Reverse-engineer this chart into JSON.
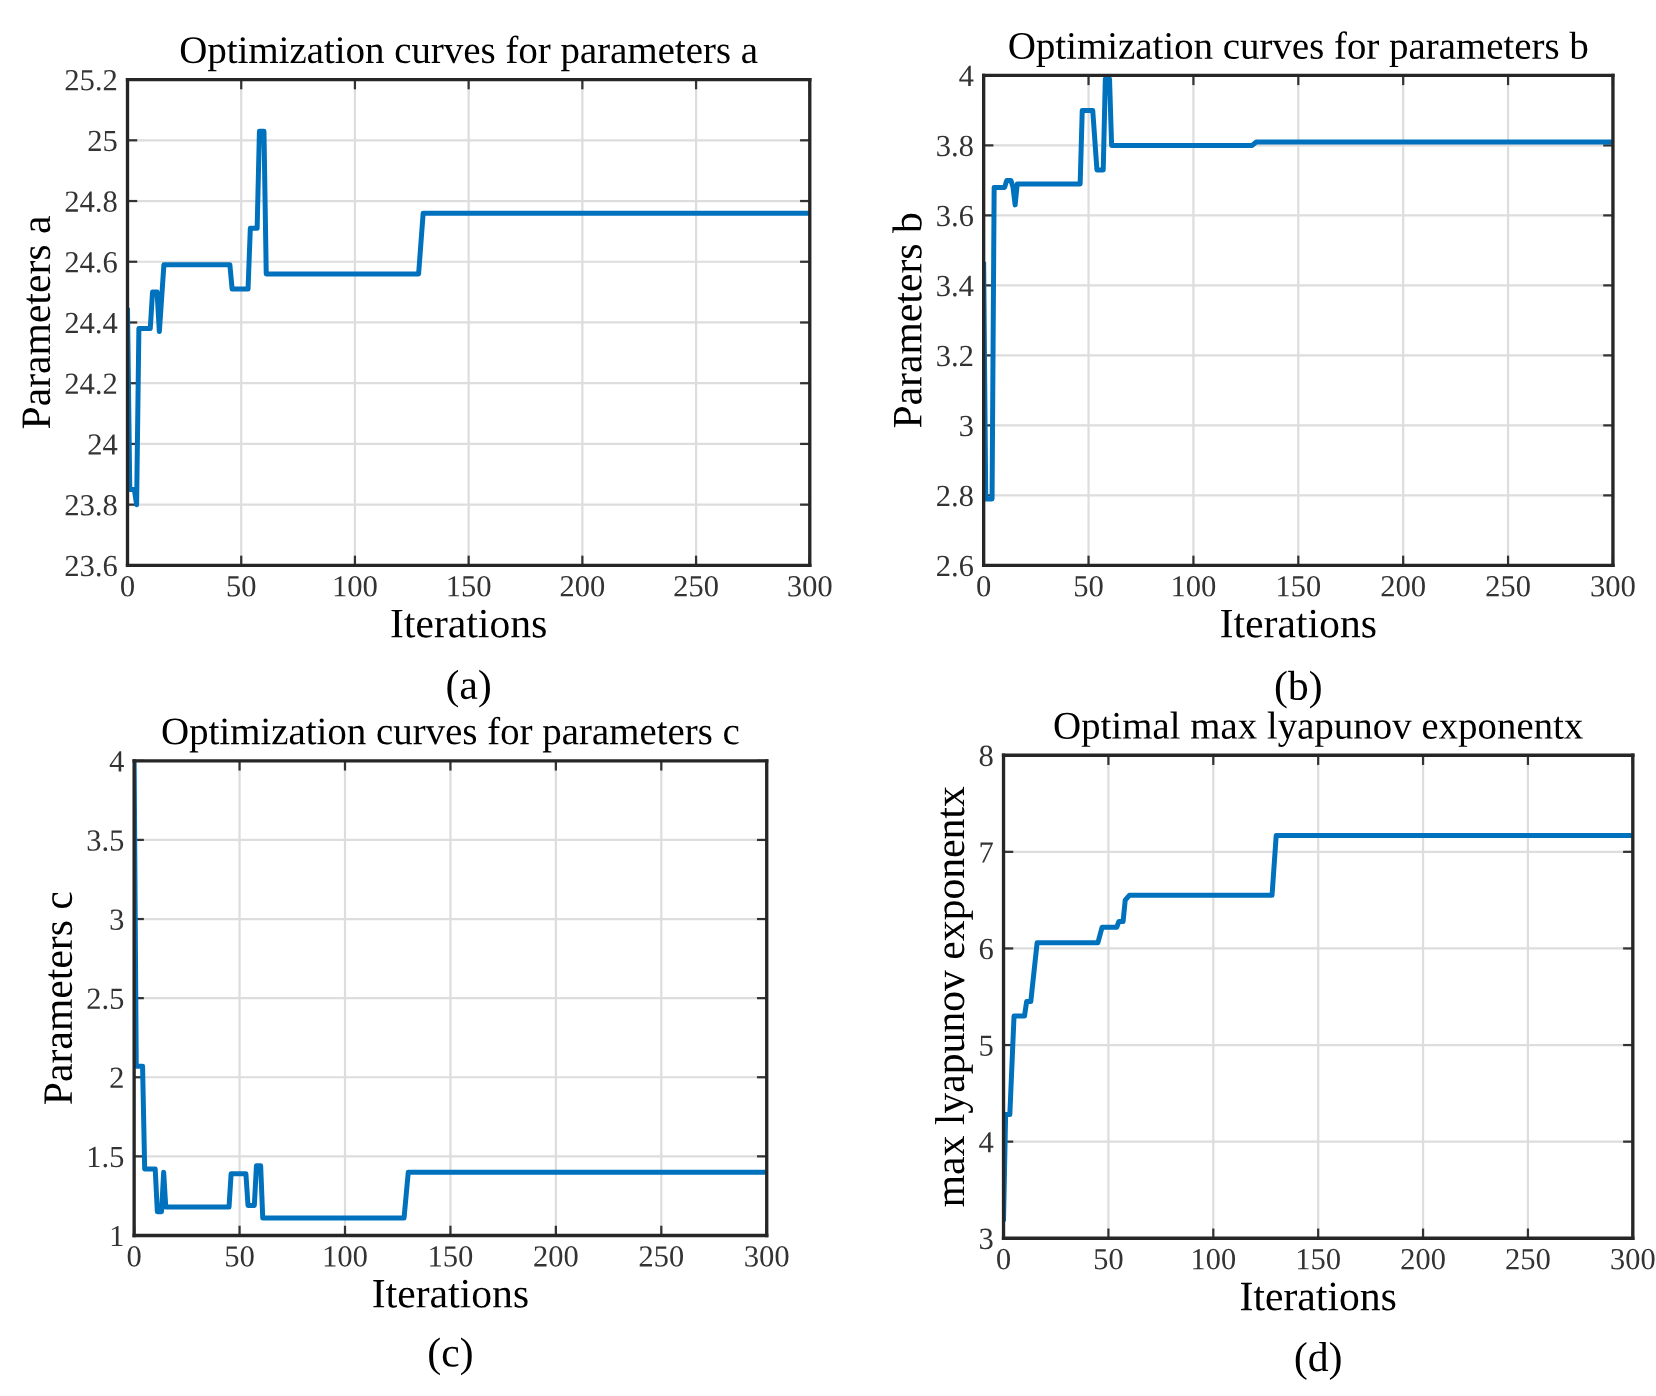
{
  "chart_data": [
    {
      "type": "line",
      "title": "Optimization curves for parameters a",
      "xlabel": "Iterations",
      "ylabel": "Parameters a",
      "annotations": [
        "(a)"
      ],
      "xlim": [
        0,
        300
      ],
      "xticks": [
        0,
        50,
        100,
        150,
        200,
        250,
        300
      ],
      "ylim": [
        23.6,
        25.2
      ],
      "yticks": [
        23.6,
        23.8,
        24,
        24.2,
        24.4,
        24.6,
        24.8,
        25,
        25.2
      ],
      "grid": true,
      "series": [
        {
          "color": "#0072bd",
          "x": [
            0,
            1,
            3,
            4,
            5,
            10,
            11,
            13,
            14,
            16,
            45,
            46,
            53,
            54,
            57,
            58,
            60,
            61,
            128,
            130,
            300
          ],
          "values": [
            24.44,
            23.85,
            23.85,
            23.8,
            24.38,
            24.38,
            24.5,
            24.5,
            24.37,
            24.59,
            24.59,
            24.51,
            24.51,
            24.71,
            24.71,
            25.03,
            25.03,
            24.56,
            24.56,
            24.76,
            24.76
          ]
        }
      ]
    },
    {
      "type": "line",
      "title": "Optimization curves for parameters b",
      "xlabel": "Iterations",
      "ylabel": "Parameters b",
      "annotations": [
        "(b)"
      ],
      "xlim": [
        0,
        300
      ],
      "xticks": [
        0,
        50,
        100,
        150,
        200,
        250,
        300
      ],
      "ylim": [
        2.6,
        4
      ],
      "yticks": [
        2.6,
        2.8,
        3,
        3.2,
        3.4,
        3.6,
        3.8,
        4
      ],
      "grid": true,
      "series": [
        {
          "color": "#0072bd",
          "x": [
            0,
            1,
            4,
            5,
            10,
            11,
            13,
            14,
            15,
            16,
            46,
            47,
            52,
            54,
            57,
            58,
            60,
            61,
            128,
            130,
            300
          ],
          "values": [
            3.46,
            2.79,
            2.79,
            3.68,
            3.68,
            3.7,
            3.7,
            3.68,
            3.63,
            3.69,
            3.69,
            3.9,
            3.9,
            3.73,
            3.73,
            3.99,
            3.99,
            3.8,
            3.8,
            3.81,
            3.81
          ]
        }
      ]
    },
    {
      "type": "line",
      "title": "Optimization curves for parameters c",
      "xlabel": "Iterations",
      "ylabel": "Parameters c",
      "annotations": [
        "(c)"
      ],
      "xlim": [
        0,
        300
      ],
      "xticks": [
        0,
        50,
        100,
        150,
        200,
        250,
        300
      ],
      "ylim": [
        1,
        4
      ],
      "yticks": [
        1,
        1.5,
        2,
        2.5,
        3,
        3.5,
        4
      ],
      "grid": true,
      "series": [
        {
          "color": "#0072bd",
          "x": [
            0,
            1,
            4,
            5,
            10,
            11,
            13,
            14,
            15,
            45,
            46,
            53,
            54,
            57,
            58,
            60,
            61,
            128,
            130,
            300
          ],
          "values": [
            4,
            2.07,
            2.07,
            1.42,
            1.42,
            1.15,
            1.15,
            1.4,
            1.18,
            1.18,
            1.39,
            1.39,
            1.19,
            1.19,
            1.44,
            1.44,
            1.11,
            1.11,
            1.4,
            1.4
          ]
        }
      ]
    },
    {
      "type": "line",
      "title": "Optimal max lyapunov exponentx",
      "xlabel": "Iterations",
      "ylabel": "max lyapunov exponentx",
      "annotations": [
        "(d)"
      ],
      "xlim": [
        0,
        300
      ],
      "xticks": [
        0,
        50,
        100,
        150,
        200,
        250,
        300
      ],
      "ylim": [
        3,
        8
      ],
      "yticks": [
        3,
        4,
        5,
        6,
        7,
        8
      ],
      "grid": true,
      "series": [
        {
          "color": "#0072bd",
          "x": [
            0,
            1,
            3,
            5,
            10,
            11,
            13,
            16,
            45,
            47,
            54,
            55,
            57,
            58,
            60,
            128,
            130,
            300
          ],
          "values": [
            3.2,
            4.28,
            4.28,
            5.3,
            5.3,
            5.45,
            5.45,
            6.06,
            6.06,
            6.22,
            6.22,
            6.28,
            6.28,
            6.5,
            6.55,
            6.55,
            7.17,
            7.17
          ]
        }
      ]
    }
  ]
}
